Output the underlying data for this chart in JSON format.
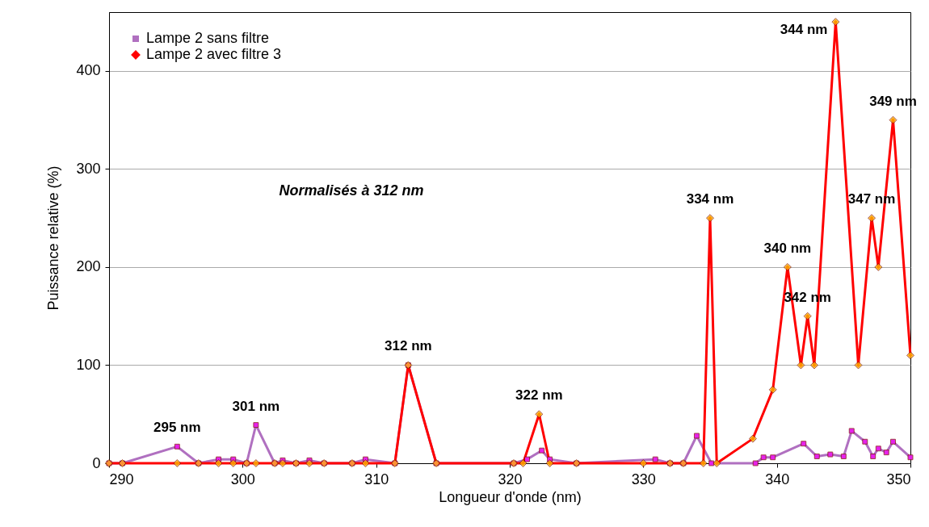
{
  "chart_data": {
    "type": "line",
    "xlabel": "Longueur d'onde (nm)",
    "ylabel": "Puissance relative  (%)",
    "xlim": [
      290,
      350
    ],
    "ylim": [
      0,
      460
    ],
    "xticks": [
      290,
      300,
      310,
      320,
      330,
      340,
      350
    ],
    "yticks": [
      0,
      100,
      200,
      300,
      400
    ],
    "grid": "y",
    "legend": "top left",
    "line_style": "solid",
    "series": [
      {
        "name": "Lampe 2 sans filtre",
        "color": "#b070c0",
        "marker": "square",
        "x": [
          290,
          291,
          295.1,
          296.7,
          298.2,
          299.3,
          300.3,
          301,
          302.4,
          303,
          304,
          305,
          306.1,
          308.2,
          309.2,
          311.4,
          312.4,
          314.5,
          320.3,
          321.3,
          322.4,
          323,
          325,
          330.9,
          332,
          333,
          334,
          335.1,
          338.4,
          339,
          339.7,
          342,
          343,
          344,
          345,
          345.6,
          346.6,
          347.2,
          347.6,
          348.2,
          348.7,
          350
        ],
        "values": [
          0,
          0,
          17,
          0,
          4,
          4,
          0,
          39,
          0,
          3,
          0,
          3,
          0,
          0,
          4,
          0,
          100,
          0,
          0,
          4,
          13,
          4,
          0,
          4,
          0,
          0,
          28,
          0,
          0,
          6,
          6,
          20,
          7,
          9,
          7,
          33,
          22,
          7,
          15,
          11,
          22,
          6
        ]
      },
      {
        "name": "Lampe 2 avec filtre 3",
        "color": "#ff0000",
        "marker": "diamond",
        "x": [
          290,
          291,
          295.1,
          296.7,
          298.2,
          299.3,
          300.3,
          301,
          302.4,
          303,
          304,
          305,
          306.1,
          308.2,
          309.2,
          311.4,
          312.4,
          314.5,
          320.3,
          321,
          322.2,
          323,
          325,
          330,
          332,
          333,
          334.5,
          335,
          335.5,
          338.2,
          339.7,
          340.8,
          341.8,
          342.3,
          342.8,
          344.4,
          346.1,
          347.1,
          347.6,
          348.7,
          350
        ],
        "values": [
          0,
          0,
          0,
          0,
          0,
          0,
          0,
          0,
          0,
          0,
          0,
          0,
          0,
          0,
          0,
          0,
          100,
          0,
          0,
          0,
          50,
          0,
          0,
          0,
          0,
          0,
          0,
          250,
          0,
          25,
          75,
          200,
          100,
          150,
          100,
          450,
          100,
          250,
          200,
          350,
          110
        ]
      }
    ],
    "annotations": [
      {
        "text": "295 nm",
        "x": 295.1,
        "y": 17
      },
      {
        "text": "301 nm",
        "x": 301,
        "y": 39
      },
      {
        "text": "312 nm",
        "x": 312.4,
        "y": 100
      },
      {
        "text": "322 nm",
        "x": 322.2,
        "y": 50
      },
      {
        "text": "334 nm",
        "x": 335,
        "y": 250
      },
      {
        "text": "340 nm",
        "x": 340.8,
        "y": 200
      },
      {
        "text": "342 nm",
        "x": 342.3,
        "y": 150
      },
      {
        "text": "344 nm",
        "x": 344.4,
        "y": 450
      },
      {
        "text": "347 nm",
        "x": 347.1,
        "y": 250
      },
      {
        "text": "349 nm",
        "x": 348.7,
        "y": 350
      },
      "Normalisés à 312 nm"
    ]
  }
}
